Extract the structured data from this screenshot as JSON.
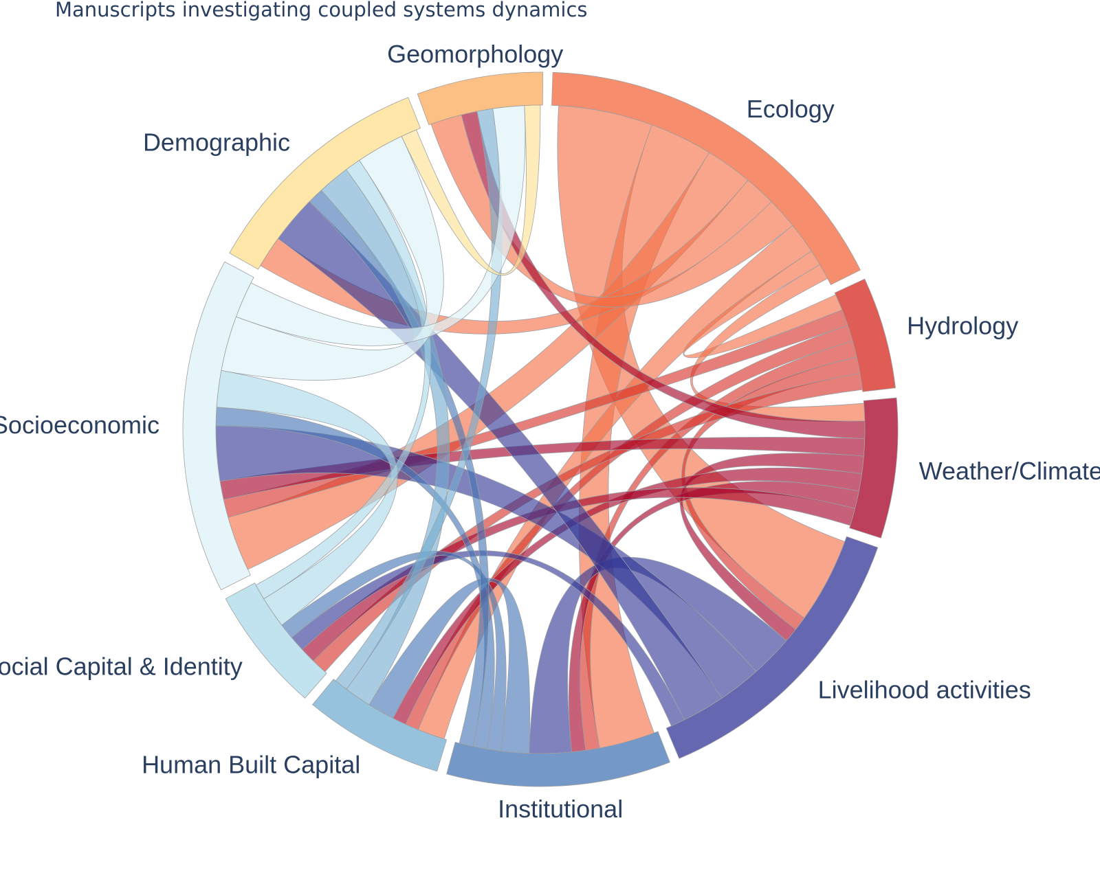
{
  "chart_data": {
    "type": "chord",
    "title": "Manuscripts investigating coupled systems dynamics",
    "groups": [
      {
        "name": "Ecology",
        "color": "#f46d43",
        "opacity": 0.78,
        "weight": 27
      },
      {
        "name": "Hydrology",
        "color": "#d73027",
        "opacity": 0.78,
        "weight": 8
      },
      {
        "name": "Weather/Climate",
        "color": "#a50026",
        "opacity": 0.75,
        "weight": 10
      },
      {
        "name": "Livelihood activities",
        "color": "#313695",
        "opacity": 0.75,
        "weight": 21
      },
      {
        "name": "Institutional",
        "color": "#4575b4",
        "opacity": 0.75,
        "weight": 16
      },
      {
        "name": "Human Built Capital",
        "color": "#74add1",
        "opacity": 0.75,
        "weight": 10
      },
      {
        "name": "Social Capital & Identity",
        "color": "#abd9e9",
        "opacity": 0.75,
        "weight": 9
      },
      {
        "name": "Socioeconomic",
        "color": "#e0f3f8",
        "opacity": 0.85,
        "weight": 24
      },
      {
        "name": "Demographic",
        "color": "#fee090",
        "opacity": 0.78,
        "weight": 17
      },
      {
        "name": "Geomorphology",
        "color": "#fdae61",
        "opacity": 0.78,
        "weight": 9
      }
    ],
    "links": [
      {
        "source": "Ecology",
        "target": "Livelihood activities",
        "value": 6
      },
      {
        "source": "Ecology",
        "target": "Institutional",
        "value": 4
      },
      {
        "source": "Ecology",
        "target": "Socioeconomic",
        "value": 3
      },
      {
        "source": "Ecology",
        "target": "Demographic",
        "value": 2
      },
      {
        "source": "Ecology",
        "target": "Geomorphology",
        "value": 2
      },
      {
        "source": "Ecology",
        "target": "Human Built Capital",
        "value": 2
      },
      {
        "source": "Ecology",
        "target": "Hydrology",
        "value": 1
      },
      {
        "source": "Ecology",
        "target": "Weather/Climate",
        "value": 1
      },
      {
        "source": "Hydrology",
        "target": "Socioeconomic",
        "value": 1
      },
      {
        "source": "Hydrology",
        "target": "Human Built Capital",
        "value": 1
      },
      {
        "source": "Hydrology",
        "target": "Institutional",
        "value": 1
      },
      {
        "source": "Hydrology",
        "target": "Livelihood activities",
        "value": 1
      },
      {
        "source": "Hydrology",
        "target": "Social Capital & Identity",
        "value": 1
      },
      {
        "source": "Weather/Climate",
        "target": "Geomorphology",
        "value": 1
      },
      {
        "source": "Weather/Climate",
        "target": "Socioeconomic",
        "value": 1
      },
      {
        "source": "Weather/Climate",
        "target": "Livelihood activities",
        "value": 1
      },
      {
        "source": "Weather/Climate",
        "target": "Human Built Capital",
        "value": 1
      },
      {
        "source": "Weather/Climate",
        "target": "Institutional",
        "value": 1
      },
      {
        "source": "Weather/Climate",
        "target": "Social Capital & Identity",
        "value": 1
      },
      {
        "source": "Livelihood activities",
        "target": "Institutional",
        "value": 3
      },
      {
        "source": "Livelihood activities",
        "target": "Socioeconomic",
        "value": 3
      },
      {
        "source": "Livelihood activities",
        "target": "Demographic",
        "value": 3
      },
      {
        "source": "Livelihood activities",
        "target": "Social Capital & Identity",
        "value": 1
      },
      {
        "source": "Institutional",
        "target": "Human Built Capital",
        "value": 2
      },
      {
        "source": "Institutional",
        "target": "Social Capital & Identity",
        "value": 1
      },
      {
        "source": "Institutional",
        "target": "Socioeconomic",
        "value": 1
      },
      {
        "source": "Institutional",
        "target": "Demographic",
        "value": 1
      },
      {
        "source": "Human Built Capital",
        "target": "Demographic",
        "value": 2
      },
      {
        "source": "Human Built Capital",
        "target": "Geomorphology",
        "value": 1
      },
      {
        "source": "Social Capital & Identity",
        "target": "Socioeconomic",
        "value": 2
      },
      {
        "source": "Social Capital & Identity",
        "target": "Demographic",
        "value": 1
      },
      {
        "source": "Socioeconomic",
        "target": "Demographic",
        "value": 3
      },
      {
        "source": "Socioeconomic",
        "target": "Geomorphology",
        "value": 2
      },
      {
        "source": "Demographic",
        "target": "Geomorphology",
        "value": 1
      }
    ]
  }
}
